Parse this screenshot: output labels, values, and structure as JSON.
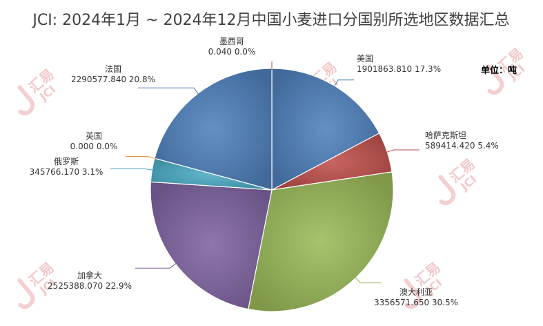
{
  "chart_data": {
    "type": "pie",
    "title": "JCI: 2024年1月 ~ 2024年12月中国小麦进口分国别所选地区数据汇总",
    "unit": "单位：吨",
    "start_angle_deg": 0,
    "direction": "clockwise",
    "slices": [
      {
        "name": "美国",
        "value": 1901863.81,
        "value_text": "1901863.810",
        "percent_text": "17.3%",
        "color": "#4f81bd"
      },
      {
        "name": "哈萨克斯坦",
        "value": 589414.42,
        "value_text": "589414.420",
        "percent_text": "5.4%",
        "color": "#c0504d"
      },
      {
        "name": "澳大利亚",
        "value": 3356571.65,
        "value_text": "3356571.650",
        "percent_text": "30.5%",
        "color": "#9bbb59"
      },
      {
        "name": "加拿大",
        "value": 2525388.07,
        "value_text": "2525388.070",
        "percent_text": "22.9%",
        "color": "#8064a2"
      },
      {
        "name": "俄罗斯",
        "value": 345766.17,
        "value_text": "345766.170",
        "percent_text": "3.1%",
        "color": "#4bacc6"
      },
      {
        "name": "英国",
        "value": 0.0,
        "value_text": "0.000",
        "percent_text": "0.0%",
        "color": "#f79646"
      },
      {
        "name": "法国",
        "value": 2290577.84,
        "value_text": "2290577.840",
        "percent_text": "20.8%",
        "color": "#4f81bd"
      },
      {
        "name": "墨西哥",
        "value": 0.04,
        "value_text": "0.040",
        "percent_text": "0.0%",
        "color": "#c0504d"
      }
    ]
  },
  "watermark": {
    "brand": "汇易",
    "letters": "JCI"
  }
}
